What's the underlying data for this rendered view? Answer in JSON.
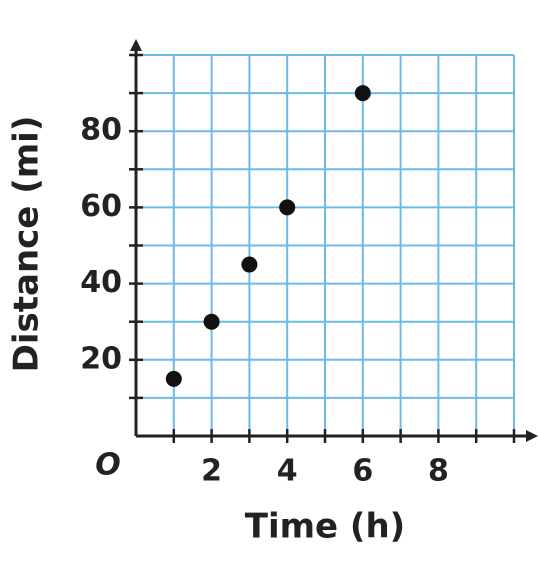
{
  "chart_data": {
    "type": "scatter",
    "x_label": "Time (h)",
    "y_label": "Distance (mi)",
    "origin_label": "O",
    "x": [
      1,
      2,
      3,
      4,
      6
    ],
    "values": [
      15,
      30,
      45,
      60,
      90
    ],
    "color": "#111111",
    "xlim": [
      0,
      10
    ],
    "ylim": [
      0,
      100
    ],
    "xticks": [
      2,
      4,
      6,
      8
    ],
    "yticks": [
      20,
      40,
      60,
      80
    ],
    "xgrid": [
      1,
      2,
      3,
      4,
      5,
      6,
      7,
      8,
      9,
      10
    ],
    "ygrid": [
      10,
      20,
      30,
      40,
      50,
      60,
      70,
      80,
      90,
      100
    ],
    "grid": true
  }
}
